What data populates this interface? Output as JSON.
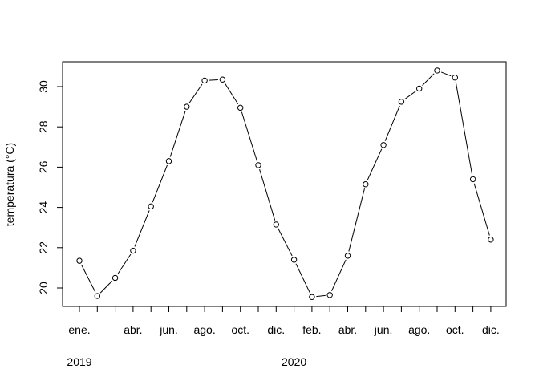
{
  "chart_data": {
    "type": "line",
    "title": "",
    "xlabel": "",
    "ylabel": "temperatura (°C)",
    "ylim": [
      19.1,
      31.3
    ],
    "yticks": [
      20,
      22,
      24,
      26,
      28,
      30
    ],
    "grid": false,
    "legend": "none",
    "x": [
      "2019-01",
      "2019-02",
      "2019-03",
      "2019-04",
      "2019-05",
      "2019-06",
      "2019-07",
      "2019-08",
      "2019-09",
      "2019-10",
      "2019-11",
      "2019-12",
      "2020-01",
      "2020-02",
      "2020-03",
      "2020-04",
      "2020-05",
      "2020-06",
      "2020-07",
      "2020-08",
      "2020-09",
      "2020-10",
      "2020-11",
      "2020-12"
    ],
    "series": [
      {
        "values": [
          21.35,
          19.6,
          20.5,
          21.85,
          24.05,
          26.3,
          29.0,
          30.3,
          30.35,
          28.95,
          26.1,
          23.15,
          21.4,
          19.55,
          19.65,
          21.6,
          25.15,
          27.1,
          29.25,
          29.9,
          30.8,
          30.45,
          25.4,
          22.4
        ]
      }
    ],
    "month_tick_labels": [
      {
        "month": "2019-01",
        "label": "ene."
      },
      {
        "month": "2019-04",
        "label": "abr."
      },
      {
        "month": "2019-06",
        "label": "jun."
      },
      {
        "month": "2019-08",
        "label": "ago."
      },
      {
        "month": "2019-10",
        "label": "oct."
      },
      {
        "month": "2019-12",
        "label": "dic."
      },
      {
        "month": "2020-02",
        "label": "feb."
      },
      {
        "month": "2020-04",
        "label": "abr."
      },
      {
        "month": "2020-06",
        "label": "jun."
      },
      {
        "month": "2020-08",
        "label": "ago."
      },
      {
        "month": "2020-10",
        "label": "oct."
      },
      {
        "month": "2020-12",
        "label": "dic."
      }
    ],
    "year_labels": [
      {
        "month": "2019-01",
        "label": "2019"
      },
      {
        "month": "2020-01",
        "label": "2020"
      }
    ],
    "colors": {
      "line": "#000000",
      "marker_fill": "#ffffff",
      "axis": "#000000"
    }
  }
}
